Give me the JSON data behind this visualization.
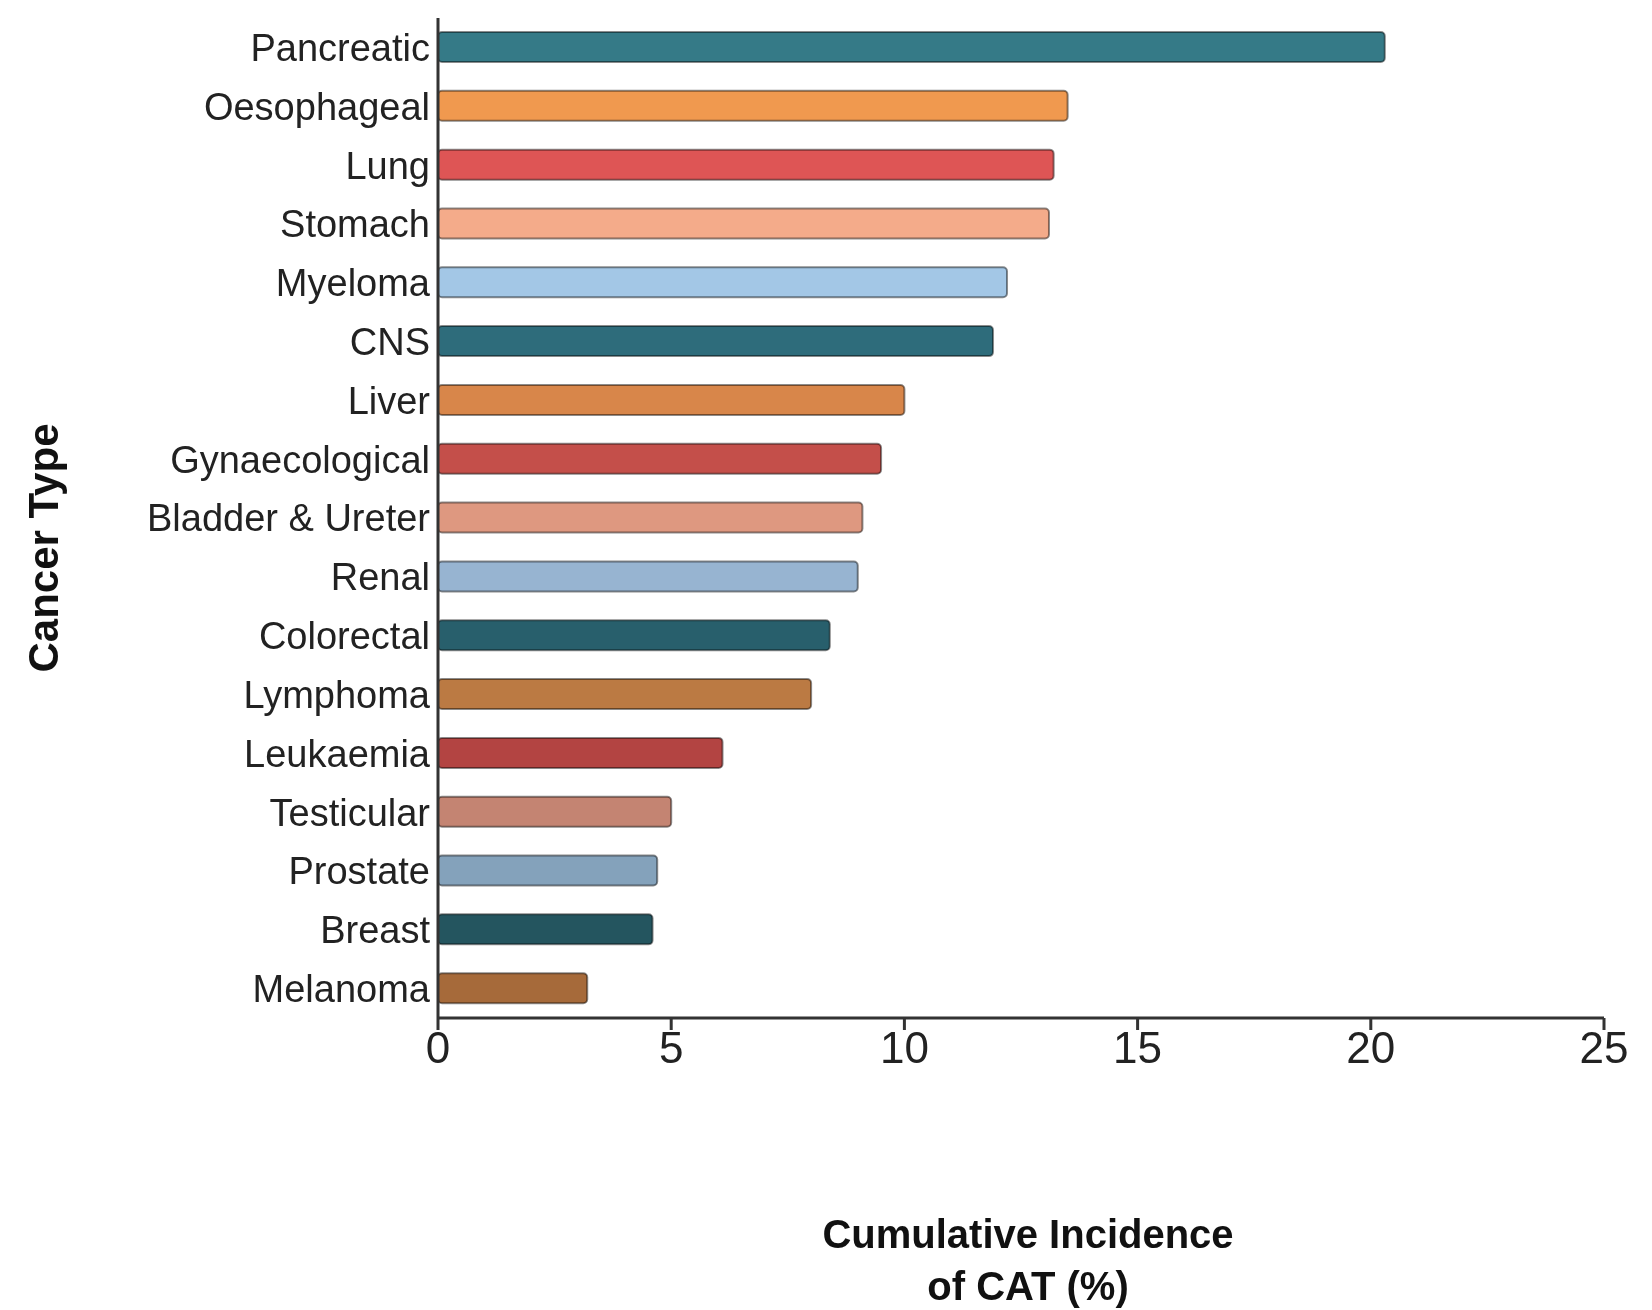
{
  "chart_data": {
    "type": "bar",
    "orientation": "horizontal",
    "xlabel": "Cumulative Incidence of CAT (%)",
    "ylabel": "Cancer Type",
    "categories": [
      "Pancreatic",
      "Oesophageal",
      "Lung",
      "Stomach",
      "Myeloma",
      "CNS",
      "Liver",
      "Gynaecological",
      "Bladder & Ureter",
      "Renal",
      "Colorectal",
      "Lymphoma",
      "Leukaemia",
      "Testicular",
      "Prostate",
      "Breast",
      "Melanoma"
    ],
    "values": [
      20.3,
      13.5,
      13.2,
      13.1,
      12.2,
      11.9,
      10.0,
      9.5,
      9.1,
      9.0,
      8.4,
      8.0,
      6.1,
      5.0,
      4.7,
      4.6,
      3.2
    ],
    "colors": [
      "#357a87",
      "#f0994f",
      "#de5555",
      "#f4ab8a",
      "#a3c7e6",
      "#2e6c7b",
      "#d8864a",
      "#c44f4a",
      "#de9880",
      "#97b4d1",
      "#285f6c",
      "#bb7a43",
      "#b34442",
      "#c48472",
      "#84a2bb",
      "#24555f",
      "#a66a3a"
    ],
    "xlim": [
      0,
      25
    ],
    "xticks": [
      0,
      5,
      10,
      15,
      20,
      25
    ],
    "grid": false,
    "legend": false
  }
}
